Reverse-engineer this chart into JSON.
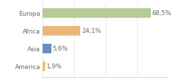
{
  "categories": [
    "Europa",
    "Africa",
    "Asia",
    "America"
  ],
  "values": [
    68.5,
    24.1,
    5.6,
    1.9
  ],
  "labels": [
    "68,5%",
    "24,1%",
    "5,6%",
    "1,9%"
  ],
  "bar_colors": [
    "#b5cc96",
    "#e8b87a",
    "#6b8cbf",
    "#e8c96a"
  ],
  "background_color": "#ffffff",
  "xlim": [
    0,
    80
  ],
  "bar_height": 0.55,
  "label_fontsize": 6.5,
  "category_fontsize": 6.5,
  "grid_color": "#dddddd",
  "text_color": "#666666"
}
